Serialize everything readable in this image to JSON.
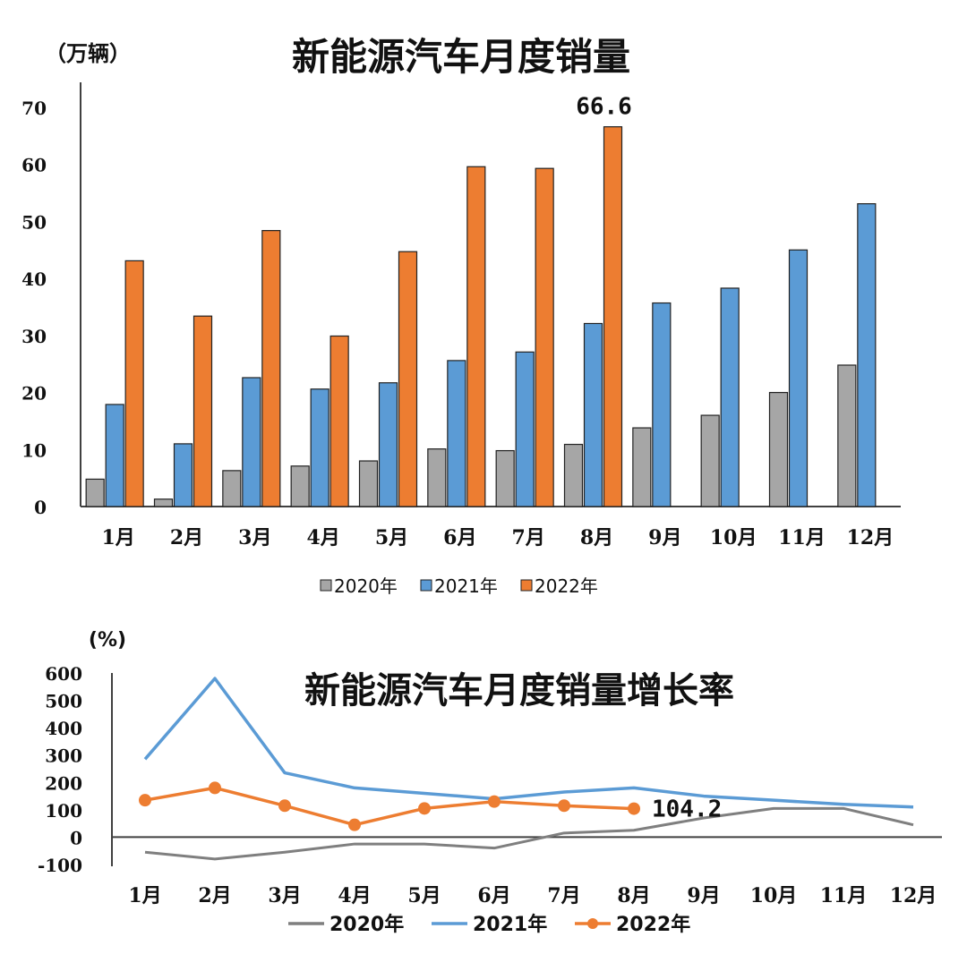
{
  "colors": {
    "s2020": "#a6a6a6",
    "s2020_line": "#7f7f7f",
    "s2021": "#5b9bd5",
    "s2022": "#ed7d31",
    "axis": "#404040"
  },
  "chart_data": [
    {
      "type": "bar",
      "title": "新能源汽车月度销量",
      "ylabel": "（万辆）",
      "ylim": [
        0,
        70
      ],
      "yticks": [
        "0",
        "10",
        "20",
        "30",
        "40",
        "50",
        "60",
        "70"
      ],
      "categories": [
        "1月",
        "2月",
        "3月",
        "4月",
        "5月",
        "6月",
        "7月",
        "8月",
        "9月",
        "10月",
        "11月",
        "12月"
      ],
      "series": [
        {
          "name": "2020年",
          "values": [
            4.8,
            1.3,
            6.3,
            7.1,
            8.0,
            10.1,
            9.8,
            10.9,
            13.8,
            16.0,
            20.0,
            24.8
          ]
        },
        {
          "name": "2021年",
          "values": [
            17.9,
            11.0,
            22.6,
            20.6,
            21.7,
            25.6,
            27.1,
            32.1,
            35.7,
            38.3,
            45.0,
            53.1
          ]
        },
        {
          "name": "2022年",
          "values": [
            43.1,
            33.4,
            48.4,
            29.9,
            44.7,
            59.6,
            59.3,
            66.6,
            null,
            null,
            null,
            null
          ]
        }
      ],
      "annotation": "66.6",
      "legend": [
        "2020年",
        "2021年",
        "2022年"
      ],
      "legend_position": "bottom"
    },
    {
      "type": "line",
      "title": "新能源汽车月度销量增长率",
      "ylabel": "(%)",
      "ylim": [
        -100,
        600
      ],
      "yticks": [
        "-100",
        "0",
        "100",
        "200",
        "300",
        "400",
        "500",
        "600"
      ],
      "categories": [
        "1月",
        "2月",
        "3月",
        "4月",
        "5月",
        "6月",
        "7月",
        "8月",
        "9月",
        "10月",
        "11月",
        "12月"
      ],
      "series": [
        {
          "name": "2020年",
          "values": [
            -55,
            -80,
            -55,
            -25,
            -25,
            -40,
            15,
            25,
            70,
            105,
            105,
            45
          ]
        },
        {
          "name": "2021年",
          "values": [
            285,
            580,
            235,
            180,
            160,
            140,
            165,
            180,
            150,
            135,
            120,
            110
          ]
        },
        {
          "name": "2022年",
          "values": [
            135,
            180,
            115,
            45,
            105,
            130,
            115,
            104.2,
            null,
            null,
            null,
            null
          ]
        }
      ],
      "annotation": "104.2",
      "legend": [
        "2020年",
        "2021年",
        "2022年"
      ],
      "legend_position": "bottom"
    }
  ]
}
